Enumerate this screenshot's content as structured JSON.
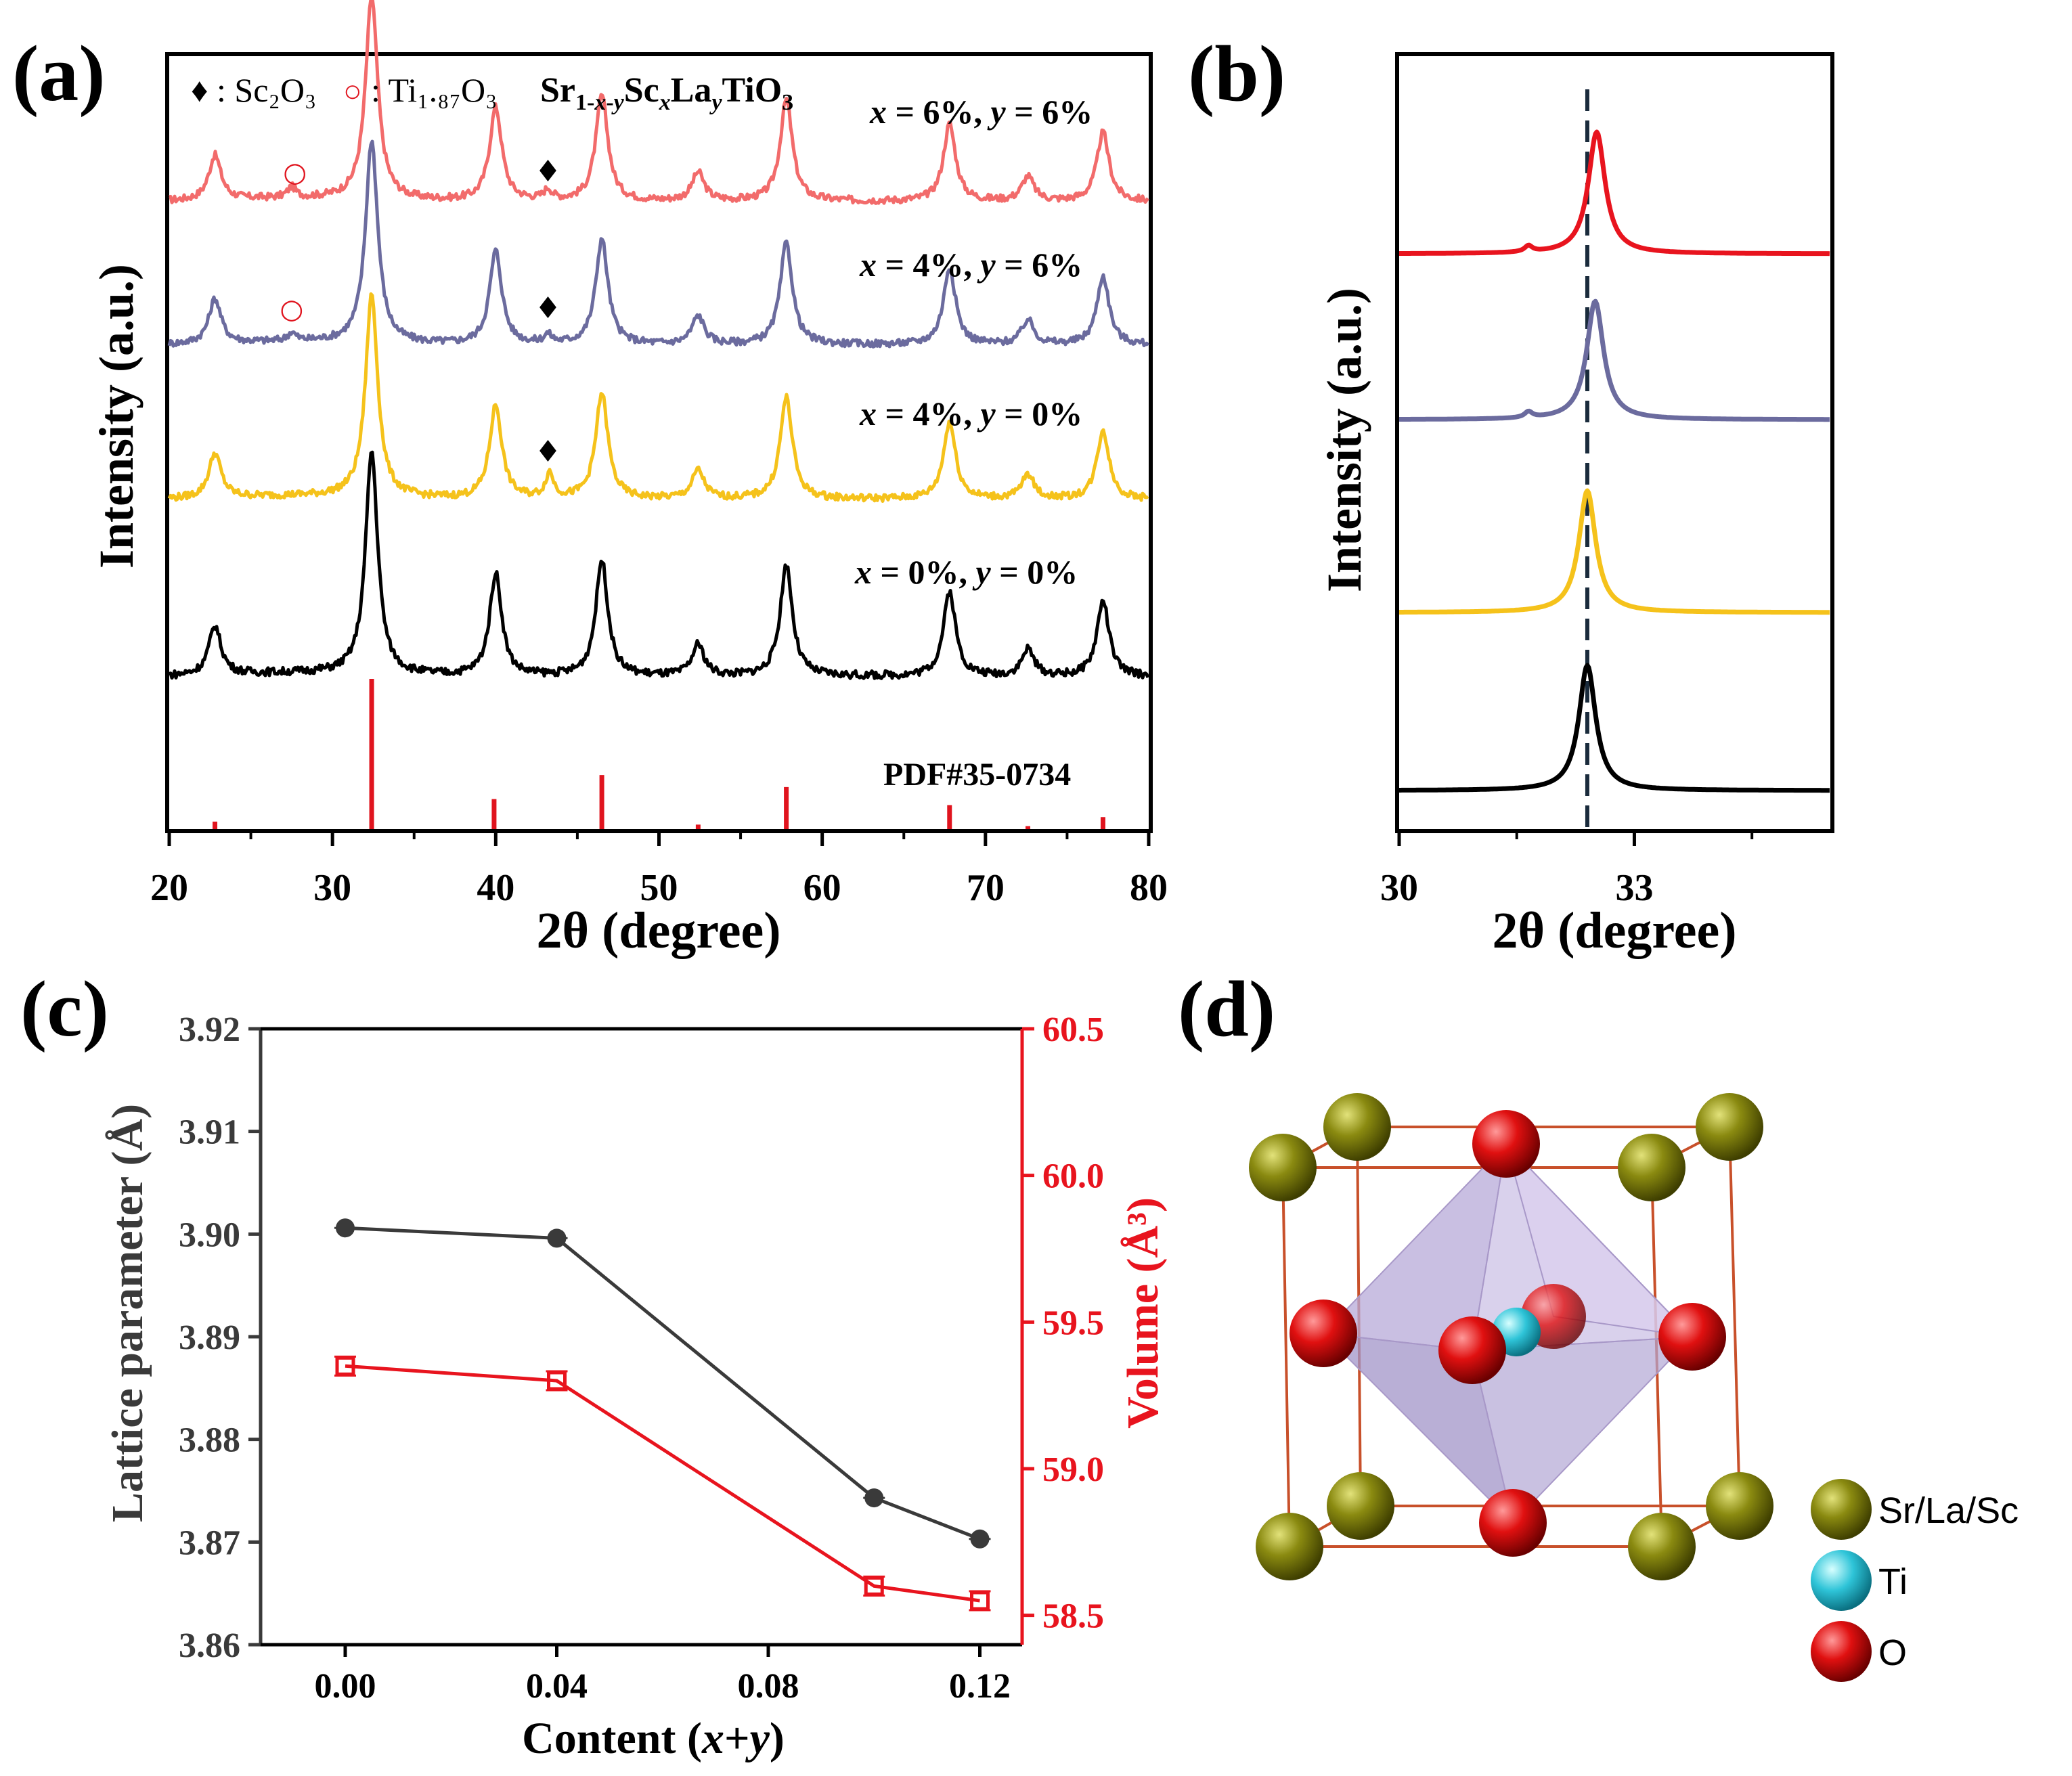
{
  "chart_data": [
    {
      "panel": "a",
      "panel_label": "(a)",
      "type": "line",
      "xlabel": "2θ (degree)",
      "ylabel": "Intensity (a.u.)",
      "xlim": [
        20,
        80
      ],
      "xticks": [
        "20",
        "30",
        "40",
        "50",
        "60",
        "70",
        "80"
      ],
      "legend_marker_sc": "♦",
      "legend_text_sc": ": Sc₂O₃",
      "legend_marker_ti": "○",
      "legend_text_ti": ": Ti₁.₈₇O₃",
      "formula": "Sr1-x-yScxLayTiO3",
      "peaks": [
        22.8,
        32.4,
        40.0,
        46.5,
        52.4,
        57.8,
        67.8,
        72.6,
        77.2
      ],
      "peak_heights": [
        0.22,
        1.0,
        0.46,
        0.52,
        0.14,
        0.5,
        0.38,
        0.12,
        0.34
      ],
      "series": [
        {
          "name": "x = 6%,  y = 6%",
          "color": "#f26b6b",
          "secondary_peaks": [
            {
              "x": 27.5,
              "h": 0.05
            },
            {
              "x": 43.2,
              "h": 0.05
            }
          ]
        },
        {
          "name": "x = 4%,  y = 6%",
          "color": "#6b6b9e",
          "secondary_peaks": [
            {
              "x": 27.5,
              "h": 0.04
            },
            {
              "x": 43.2,
              "h": 0.04
            }
          ]
        },
        {
          "name": "x = 4%,  y = 0%",
          "color": "#f5c21b",
          "secondary_peaks": [
            {
              "x": 43.3,
              "h": 0.12
            }
          ]
        },
        {
          "name": "x = 0%,  y = 0%",
          "color": "#000000",
          "secondary_peaks": []
        }
      ],
      "markers": [
        {
          "series": 0,
          "symbol": "○",
          "x": 27.7
        },
        {
          "series": 0,
          "symbol": "♦",
          "x": 43.2
        },
        {
          "series": 1,
          "symbol": "○",
          "x": 27.5
        },
        {
          "series": 1,
          "symbol": "♦",
          "x": 43.2
        },
        {
          "series": 2,
          "symbol": "♦",
          "x": 43.2
        }
      ],
      "reference": {
        "label": "PDF#35-0734",
        "color": "#e0141e",
        "positions": [
          22.8,
          32.4,
          39.9,
          46.5,
          52.4,
          57.8,
          67.8,
          72.6,
          77.2
        ],
        "intensities": [
          5,
          100,
          20,
          36,
          3,
          28,
          16,
          2,
          8
        ]
      }
    },
    {
      "panel": "b",
      "panel_label": "(b)",
      "type": "line",
      "xlabel": "2θ (degree)",
      "ylabel": "Intensity (a.u.)",
      "xlim": [
        30,
        35.5
      ],
      "xticks": [
        "30",
        "33"
      ],
      "reference_line_x": 32.4,
      "series": [
        {
          "name": "x = 6%, y = 6%",
          "color": "#e8141e",
          "peak": 32.52
        },
        {
          "name": "x = 4%, y = 6%",
          "color": "#6b6b9e",
          "peak": 32.5
        },
        {
          "name": "x = 4%, y = 0%",
          "color": "#f5c21b",
          "peak": 32.4
        },
        {
          "name": "x = 0%, y = 0%",
          "color": "#000000",
          "peak": 32.4
        }
      ]
    },
    {
      "panel": "c",
      "panel_label": "(c)",
      "type": "line",
      "xlabel": "Content (x+y)",
      "ylabel": "Lattice parameter (Å)",
      "ylabel_right": "Volume (Å³)",
      "xlim": [
        -0.016,
        0.128
      ],
      "xticks": [
        "0.00",
        "0.04",
        "0.08",
        "0.12"
      ],
      "ylim": [
        3.86,
        3.92
      ],
      "yticks": [
        "3.86",
        "3.87",
        "3.88",
        "3.89",
        "3.90",
        "3.91",
        "3.92"
      ],
      "ylim_right": [
        58.4,
        60.5
      ],
      "yticks_right": [
        "58.5",
        "59.0",
        "59.5",
        "60.0",
        "60.5"
      ],
      "series": [
        {
          "name": "Lattice parameter",
          "color": "#3a3a3a",
          "axis": "left",
          "x": [
            0.0,
            0.04,
            0.1,
            0.12
          ],
          "y": [
            3.9006,
            3.8996,
            3.8743,
            3.8703
          ]
        },
        {
          "name": "Volume",
          "color": "#e8141e",
          "axis": "right",
          "x": [
            0.0,
            0.04,
            0.1,
            0.12
          ],
          "y": [
            59.35,
            59.3,
            58.6,
            58.55
          ]
        }
      ]
    }
  ],
  "panel_d": {
    "panel_label": "(d)",
    "legend": [
      {
        "label": "Sr/La/Sc",
        "color": "#808000"
      },
      {
        "label": "Ti",
        "color": "#2ec4d8"
      },
      {
        "label": "O",
        "color": "#e01010"
      }
    ]
  }
}
